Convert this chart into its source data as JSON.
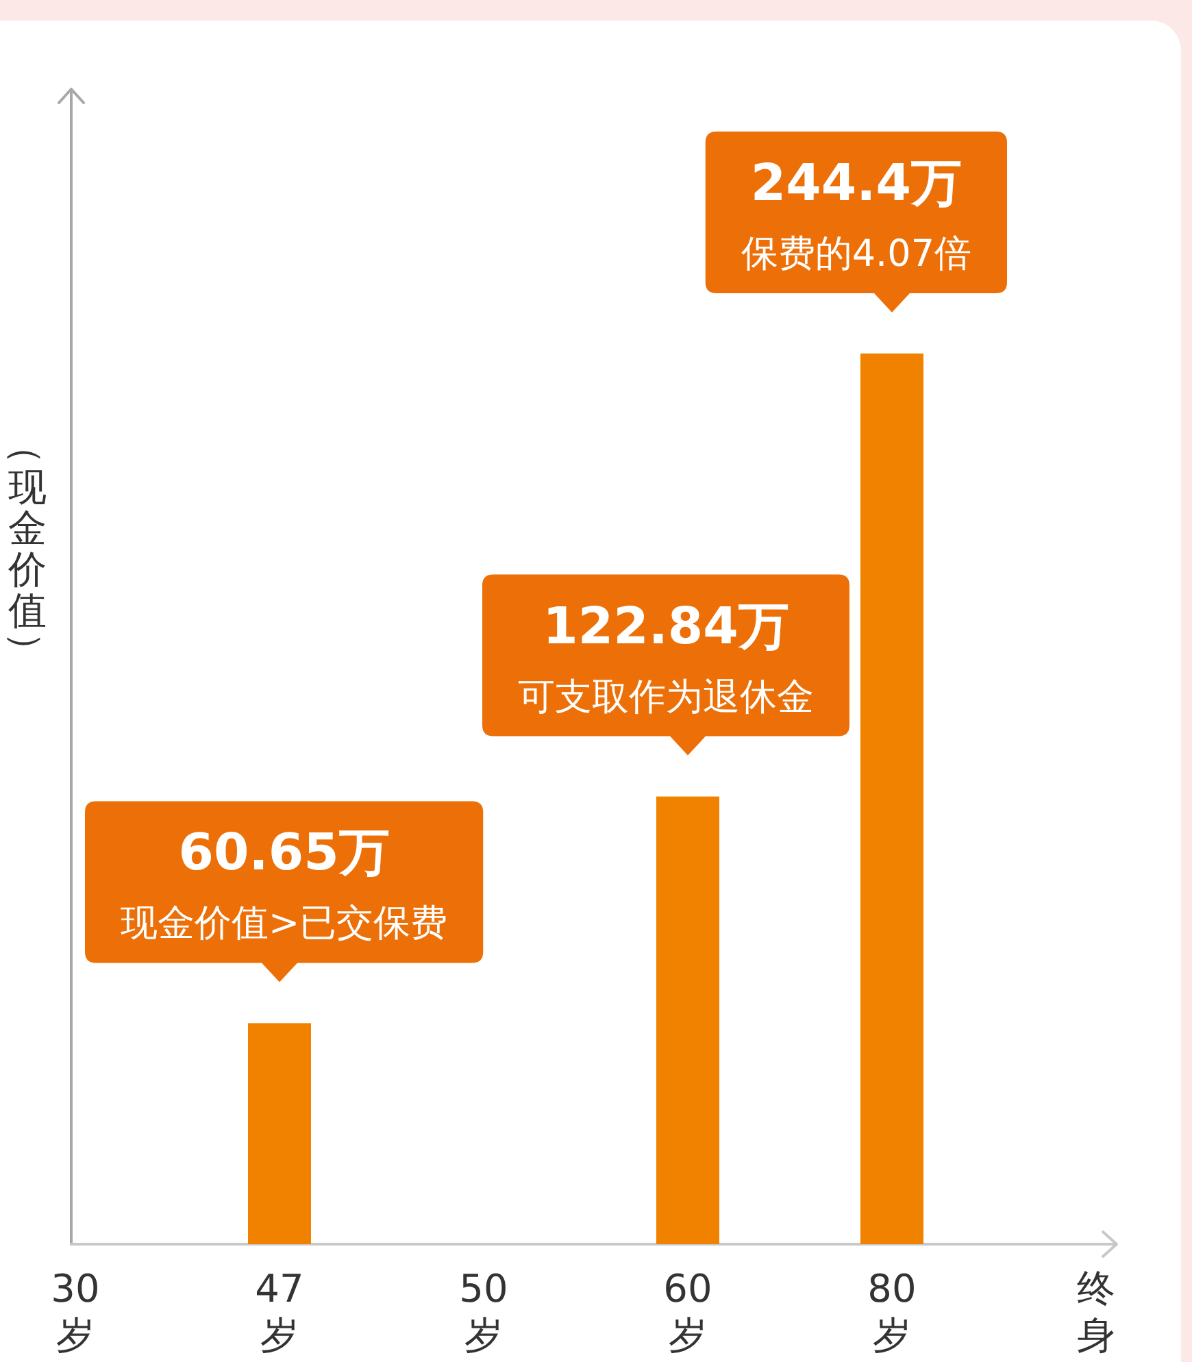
{
  "chart_data": {
    "type": "bar",
    "ylabel": "（现金价值）",
    "categories": [
      "30岁",
      "47岁",
      "50岁",
      "60岁",
      "80岁",
      "终身"
    ],
    "values": [
      null,
      60.65,
      null,
      122.84,
      244.4,
      null
    ],
    "color": "#f08200",
    "value_labels": [
      null,
      "60.65万",
      null,
      "122.84万",
      "244.4万",
      null
    ],
    "annotations": [
      {
        "text": "现金价值>已交保费",
        "x": "47岁",
        "y": 60.65
      },
      {
        "text": "可支取作为退休金",
        "x": "60岁",
        "y": 122.84
      },
      {
        "text": "保费的4.07倍",
        "x": "80岁",
        "y": 244.4
      }
    ],
    "tick_labels": "x"
  }
}
